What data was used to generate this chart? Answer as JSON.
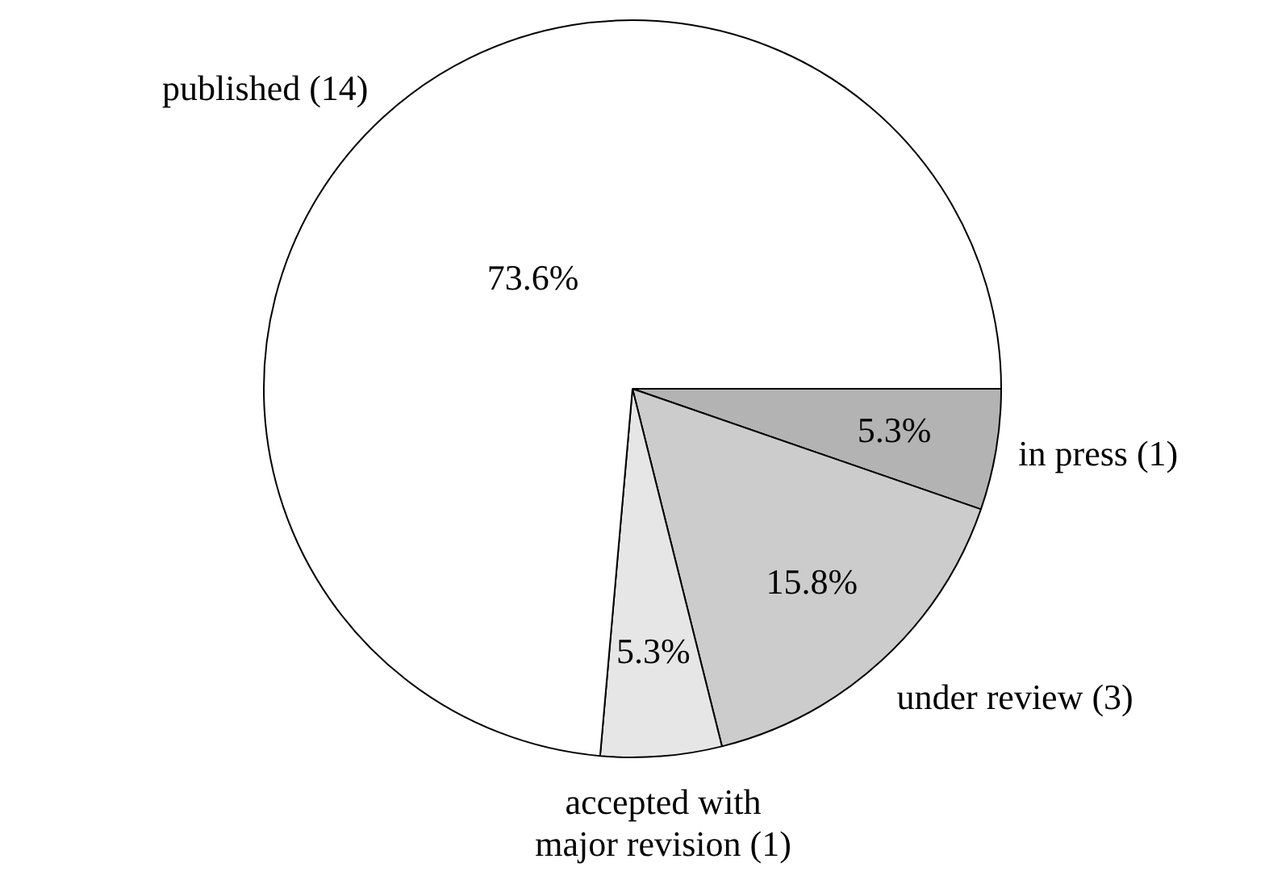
{
  "chart_data": {
    "type": "pie",
    "categories": [
      "in press (1)",
      "under review (3)",
      "accepted with major revision (1)",
      "published (14)"
    ],
    "values": [
      5.3,
      15.8,
      5.3,
      73.6
    ],
    "colors": [
      "#b3b3b3",
      "#cccccc",
      "#e6e6e6",
      "#ffffff"
    ],
    "value_labels": [
      "5.3%",
      "15.8%",
      "5.3%",
      "73.6%"
    ],
    "legend": false
  }
}
